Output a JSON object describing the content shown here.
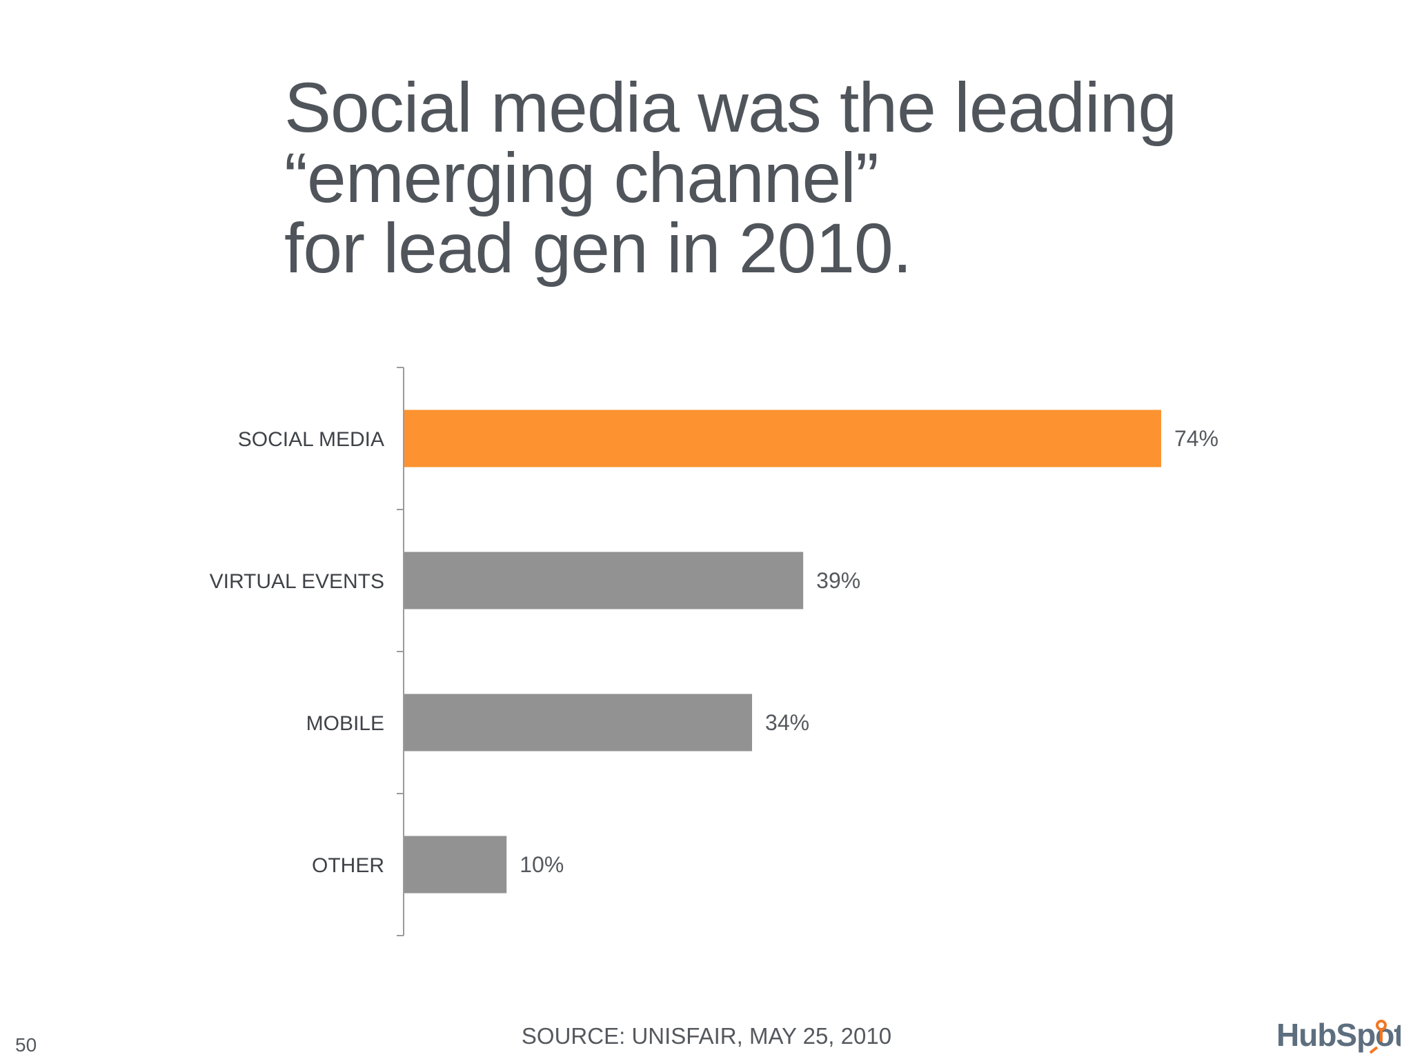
{
  "slide": {
    "title_lines": [
      "Social media was the leading",
      "“emerging channel”",
      "for lead gen in 2010."
    ],
    "source": "SOURCE: UNISFAIR, MAY 25, 2010",
    "page_number": "50"
  },
  "logo": {
    "text": "HubSpot",
    "icon": "hubspot-sprocket-icon",
    "color_text": "#5d6e7e",
    "color_accent": "#f47622"
  },
  "chart_data": {
    "type": "bar",
    "orientation": "horizontal",
    "categories": [
      "SOCIAL MEDIA",
      "VIRTUAL EVENTS",
      "MOBILE",
      "OTHER"
    ],
    "values": [
      74,
      39,
      34,
      10
    ],
    "value_labels": [
      "74%",
      "39%",
      "34%",
      "10%"
    ],
    "unit": "%",
    "xlim": [
      0,
      74
    ],
    "grid": false,
    "legend": "none",
    "colors": {
      "highlight": "#fd9330",
      "default": "#929293",
      "axis": "#9a9a9a"
    },
    "highlight_index": 0
  }
}
